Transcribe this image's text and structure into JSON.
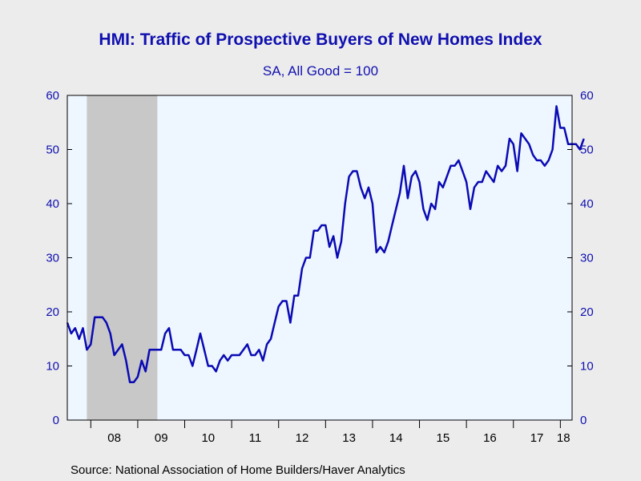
{
  "chart_data": {
    "type": "line",
    "title": "HMI: Traffic of Prospective Buyers of New Homes Index",
    "subtitle": "SA, All Good = 100",
    "source": "Source:  National Association of Home Builders/Haver Analytics",
    "ylim": [
      0,
      60
    ],
    "yticks": [
      0,
      10,
      20,
      30,
      40,
      50,
      60
    ],
    "x_start": "2007-07",
    "x_end": "2018-04",
    "x_tick_labels": [
      "08",
      "09",
      "10",
      "11",
      "12",
      "13",
      "14",
      "15",
      "16",
      "17",
      "18"
    ],
    "recession_shading": {
      "start": "2007-12",
      "end": "2009-06"
    },
    "grid": false,
    "line_color": "#0a0ab4",
    "plot_background": "#eef6ff",
    "recession_color": "#c8c8c8",
    "series": [
      {
        "frequency": "monthly",
        "values": [
          18,
          16,
          17,
          15,
          17,
          13,
          14,
          19,
          19,
          19,
          18,
          16,
          12,
          13,
          14,
          11,
          7,
          7,
          8,
          11,
          9,
          13,
          13,
          13,
          13,
          16,
          17,
          13,
          13,
          13,
          12,
          12,
          10,
          13,
          16,
          13,
          10,
          10,
          9,
          11,
          12,
          11,
          12,
          12,
          12,
          13,
          14,
          12,
          12,
          13,
          11,
          14,
          15,
          18,
          21,
          22,
          22,
          18,
          23,
          23,
          28,
          30,
          30,
          35,
          35,
          36,
          36,
          32,
          34,
          30,
          33,
          40,
          45,
          46,
          46,
          43,
          41,
          43,
          40,
          31,
          32,
          31,
          33,
          36,
          39,
          42,
          47,
          41,
          45,
          46,
          44,
          39,
          37,
          40,
          39,
          44,
          43,
          45,
          47,
          47,
          48,
          46,
          44,
          39,
          43,
          44,
          44,
          46,
          45,
          44,
          47,
          46,
          47,
          52,
          51,
          46,
          53,
          52,
          51,
          49,
          48,
          48,
          47,
          48,
          50,
          58,
          54,
          54,
          51,
          51,
          51,
          50,
          52
        ]
      }
    ]
  }
}
